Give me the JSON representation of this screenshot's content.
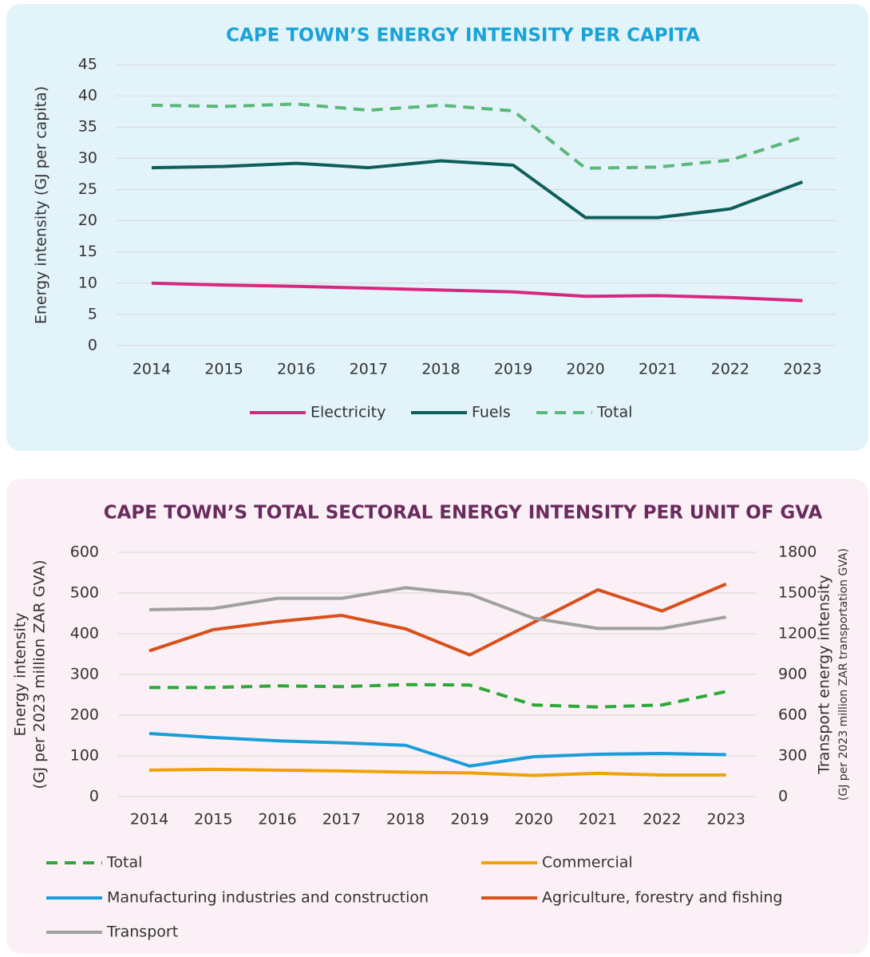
{
  "chart_data": [
    {
      "type": "line",
      "title": "CAPE TOWN’S ENERGY INTENSITY PER CAPITA",
      "ylabel": "Energy intensity (GJ per capita)",
      "categories": [
        "2014",
        "2015",
        "2016",
        "2017",
        "2018",
        "2019",
        "2020",
        "2021",
        "2022",
        "2023"
      ],
      "ylim": [
        0,
        45
      ],
      "yticks": [
        0,
        5,
        10,
        15,
        20,
        25,
        30,
        35,
        40,
        45
      ],
      "grid": true,
      "series": [
        {
          "name": "Electricity",
          "color": "#d6287f",
          "values": [
            10,
            9.7,
            9.5,
            9.2,
            8.9,
            8.6,
            7.9,
            8.0,
            7.7,
            7.2
          ]
        },
        {
          "name": "Fuels",
          "color": "#0e5e5a",
          "values": [
            28.5,
            28.7,
            29.2,
            28.5,
            29.6,
            28.9,
            20.5,
            20.5,
            21.9,
            26.2
          ]
        },
        {
          "name": "Total",
          "color": "#5cb87a",
          "dashed": true,
          "values": [
            38.5,
            38.3,
            38.7,
            37.7,
            38.5,
            37.6,
            28.4,
            28.6,
            29.7,
            33.4
          ]
        }
      ]
    },
    {
      "type": "line",
      "title": "CAPE TOWN’S TOTAL SECTORAL ENERGY INTENSITY PER UNIT OF GVA",
      "ylabel": [
        "Energy intensity",
        "(GJ per 2023 million ZAR GVA)"
      ],
      "y2label": [
        "Transport energy intensity",
        "(GJ per 2023 million ZAR transportation GVA)"
      ],
      "categories": [
        "2014",
        "2015",
        "2016",
        "2017",
        "2018",
        "2019",
        "2020",
        "2021",
        "2022",
        "2023"
      ],
      "ylim": [
        0,
        600
      ],
      "yticks": [
        0,
        100,
        200,
        300,
        400,
        500,
        600
      ],
      "y2lim": [
        0,
        1800
      ],
      "y2ticks": [
        0,
        300,
        600,
        900,
        1200,
        1500,
        1800
      ],
      "grid": true,
      "series": [
        {
          "name": "Total",
          "color": "#2ea83a",
          "dashed": true,
          "values": [
            268,
            268,
            272,
            270,
            275,
            274,
            225,
            220,
            225,
            258
          ]
        },
        {
          "name": "Commercial",
          "color": "#f2a007",
          "values": [
            65,
            67,
            65,
            63,
            60,
            58,
            52,
            57,
            53,
            53
          ]
        },
        {
          "name": "Manufacturing industries and construction",
          "color": "#1a9dd9",
          "values": [
            155,
            145,
            137,
            132,
            126,
            75,
            98,
            104,
            106,
            103
          ]
        },
        {
          "name": "Agriculture, forestry and fishing",
          "color": "#d8501c",
          "values": [
            358,
            410,
            430,
            445,
            412,
            348,
            428,
            508,
            456,
            522
          ]
        },
        {
          "name": "Transport",
          "color": "#a0a0a0",
          "axis": "y2",
          "values": [
            1377,
            1386,
            1461,
            1461,
            1539,
            1491,
            1314,
            1239,
            1239,
            1323
          ]
        }
      ]
    }
  ]
}
